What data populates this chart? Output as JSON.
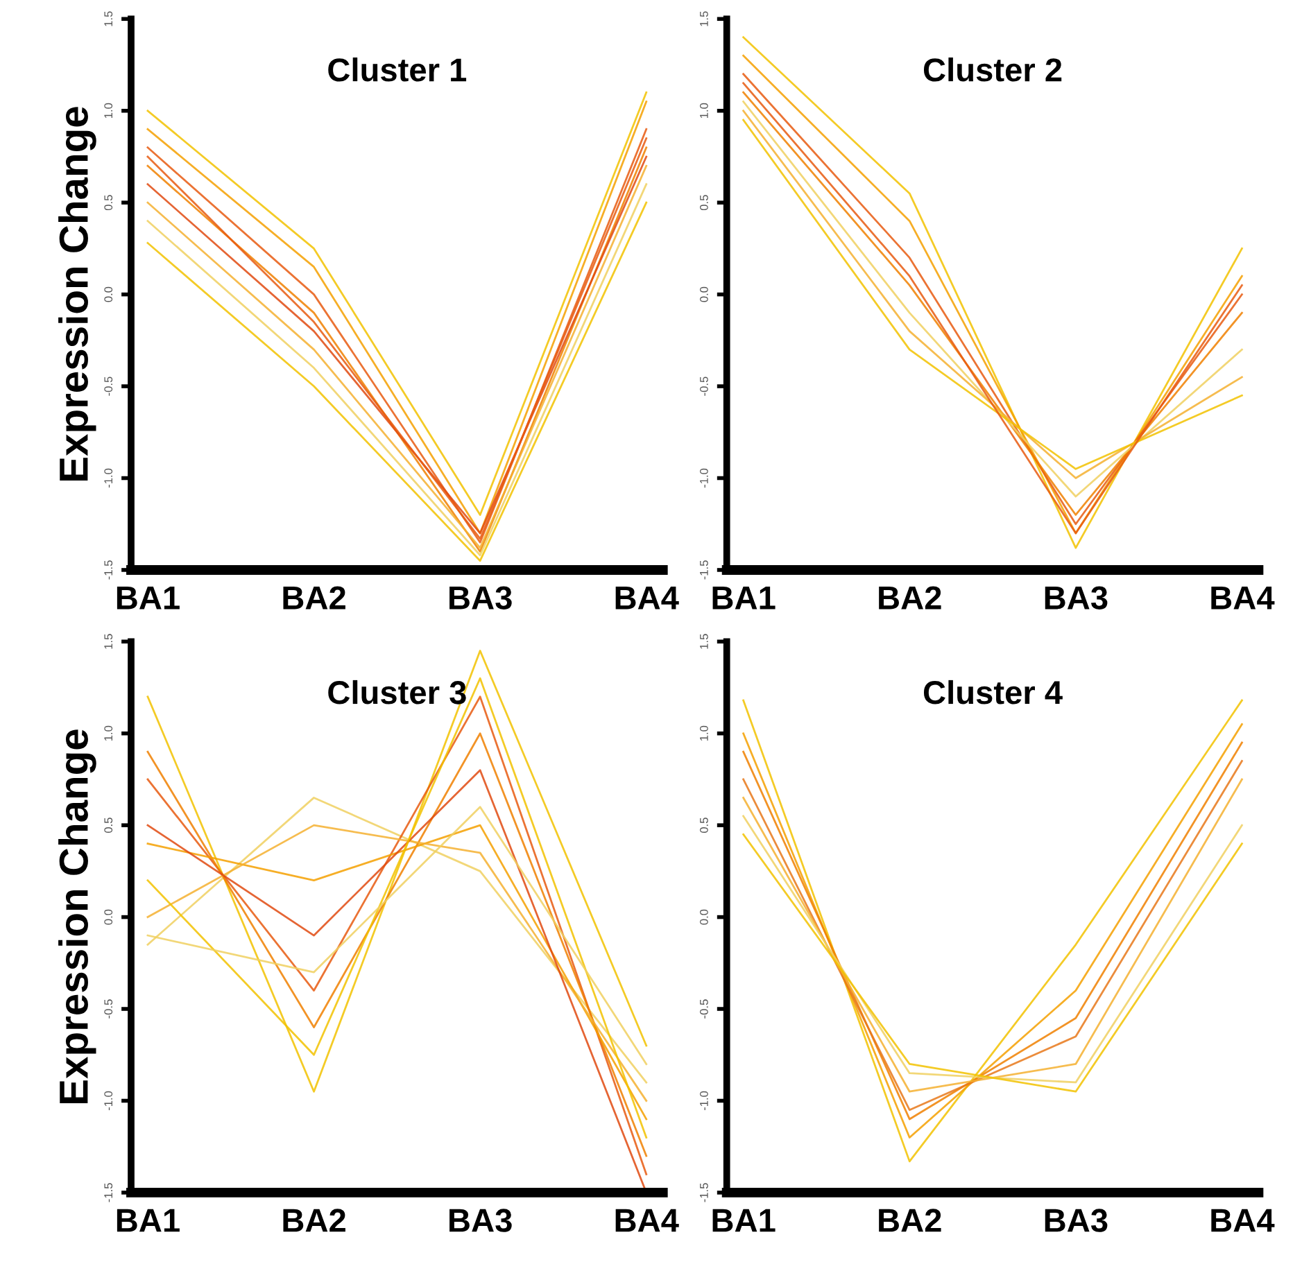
{
  "chart_data": [
    {
      "type": "line",
      "title": "Cluster 1",
      "ylabel": "Expression Change",
      "categories": [
        "BA1",
        "BA2",
        "BA3",
        "BA4"
      ],
      "ylim": [
        -1.5,
        1.5
      ],
      "yticks": [
        {
          "value": -1.5,
          "label": "-1.5"
        },
        {
          "value": -1.0,
          "label": "-1.0"
        },
        {
          "value": -0.5,
          "label": "-0.5"
        },
        {
          "value": 0.0,
          "label": "0.0"
        },
        {
          "value": 0.5,
          "label": "0.5"
        },
        {
          "value": 1.0,
          "label": "1.0"
        },
        {
          "value": 1.5,
          "label": "1.5"
        }
      ],
      "grid": false,
      "legend": false,
      "marker": "none",
      "line_style": "solid",
      "series": [
        {
          "color": "#f2c200",
          "values": [
            1.0,
            0.25,
            -1.2,
            1.1
          ]
        },
        {
          "color": "#f5a000",
          "values": [
            0.9,
            0.15,
            -1.3,
            1.05
          ]
        },
        {
          "color": "#e85a10",
          "values": [
            0.8,
            0.0,
            -1.35,
            0.9
          ]
        },
        {
          "color": "#f08000",
          "values": [
            0.7,
            -0.1,
            -1.4,
            0.8
          ]
        },
        {
          "color": "#e04a10",
          "values": [
            0.6,
            -0.2,
            -1.3,
            0.75
          ]
        },
        {
          "color": "#f5b030",
          "values": [
            0.5,
            -0.3,
            -1.38,
            0.7
          ]
        },
        {
          "color": "#f0d060",
          "values": [
            0.4,
            -0.4,
            -1.42,
            0.6
          ]
        },
        {
          "color": "#f2c200",
          "values": [
            0.28,
            -0.5,
            -1.45,
            0.5
          ]
        },
        {
          "color": "#e85a10",
          "values": [
            0.75,
            -0.15,
            -1.33,
            0.85
          ]
        }
      ]
    },
    {
      "type": "line",
      "title": "Cluster 2",
      "categories": [
        "BA1",
        "BA2",
        "BA3",
        "BA4"
      ],
      "ylim": [
        -1.5,
        1.5
      ],
      "yticks": [
        {
          "value": -1.5,
          "label": "-1.5"
        },
        {
          "value": -1.0,
          "label": "-1.0"
        },
        {
          "value": -0.5,
          "label": "-0.5"
        },
        {
          "value": 0.0,
          "label": "0.0"
        },
        {
          "value": 0.5,
          "label": "0.5"
        },
        {
          "value": 1.0,
          "label": "1.0"
        },
        {
          "value": 1.5,
          "label": "1.5"
        }
      ],
      "grid": false,
      "legend": false,
      "marker": "none",
      "line_style": "solid",
      "series": [
        {
          "color": "#f2c200",
          "values": [
            1.4,
            0.55,
            -1.38,
            0.25
          ]
        },
        {
          "color": "#f5a000",
          "values": [
            1.3,
            0.4,
            -1.3,
            0.1
          ]
        },
        {
          "color": "#e85a10",
          "values": [
            1.2,
            0.2,
            -1.25,
            0.0
          ]
        },
        {
          "color": "#f08000",
          "values": [
            1.1,
            0.05,
            -1.2,
            -0.1
          ]
        },
        {
          "color": "#f0d060",
          "values": [
            1.05,
            -0.1,
            -1.1,
            -0.3
          ]
        },
        {
          "color": "#f5b030",
          "values": [
            1.0,
            -0.2,
            -1.0,
            -0.45
          ]
        },
        {
          "color": "#f2c200",
          "values": [
            0.95,
            -0.3,
            -0.95,
            -0.55
          ]
        },
        {
          "color": "#e85a10",
          "values": [
            1.15,
            0.1,
            -1.3,
            0.05
          ]
        }
      ]
    },
    {
      "type": "line",
      "title": "Cluster 3",
      "ylabel": "Expression Change",
      "categories": [
        "BA1",
        "BA2",
        "BA3",
        "BA4"
      ],
      "ylim": [
        -1.5,
        1.5
      ],
      "yticks": [
        {
          "value": -1.5,
          "label": "-1.5"
        },
        {
          "value": -1.0,
          "label": "-1.0"
        },
        {
          "value": -0.5,
          "label": "-0.5"
        },
        {
          "value": 0.0,
          "label": "0.0"
        },
        {
          "value": 0.5,
          "label": "0.5"
        },
        {
          "value": 1.0,
          "label": "1.0"
        },
        {
          "value": 1.5,
          "label": "1.5"
        }
      ],
      "grid": false,
      "legend": false,
      "marker": "none",
      "line_style": "solid",
      "series": [
        {
          "color": "#f2c200",
          "values": [
            1.2,
            -0.95,
            1.45,
            -0.7
          ]
        },
        {
          "color": "#f0d060",
          "values": [
            -0.15,
            0.65,
            0.25,
            -0.9
          ]
        },
        {
          "color": "#e85a10",
          "values": [
            0.75,
            -0.4,
            1.2,
            -1.4
          ]
        },
        {
          "color": "#f08000",
          "values": [
            0.9,
            -0.6,
            1.0,
            -1.3
          ]
        },
        {
          "color": "#f5a000",
          "values": [
            0.4,
            0.2,
            0.5,
            -1.1
          ]
        },
        {
          "color": "#f5b030",
          "values": [
            0.0,
            0.5,
            0.35,
            -1.0
          ]
        },
        {
          "color": "#e04a10",
          "values": [
            0.5,
            -0.1,
            0.8,
            -1.5
          ]
        },
        {
          "color": "#f2c200",
          "values": [
            0.2,
            -0.75,
            1.3,
            -1.2
          ]
        },
        {
          "color": "#f0d060",
          "values": [
            -0.1,
            -0.3,
            0.6,
            -0.8
          ]
        }
      ]
    },
    {
      "type": "line",
      "title": "Cluster 4",
      "categories": [
        "BA1",
        "BA2",
        "BA3",
        "BA4"
      ],
      "ylim": [
        -1.5,
        1.5
      ],
      "yticks": [
        {
          "value": -1.5,
          "label": "-1.5"
        },
        {
          "value": -1.0,
          "label": "-1.0"
        },
        {
          "value": -0.5,
          "label": "-0.5"
        },
        {
          "value": 0.0,
          "label": "0.0"
        },
        {
          "value": 0.5,
          "label": "0.5"
        },
        {
          "value": 1.0,
          "label": "1.0"
        },
        {
          "value": 1.5,
          "label": "1.5"
        }
      ],
      "grid": false,
      "legend": false,
      "marker": "none",
      "line_style": "solid",
      "series": [
        {
          "color": "#f2c200",
          "values": [
            1.18,
            -1.33,
            -0.15,
            1.18
          ]
        },
        {
          "color": "#f5a000",
          "values": [
            1.0,
            -1.2,
            -0.4,
            1.05
          ]
        },
        {
          "color": "#f08000",
          "values": [
            0.9,
            -1.1,
            -0.55,
            0.95
          ]
        },
        {
          "color": "#e8781a",
          "values": [
            0.75,
            -1.05,
            -0.65,
            0.85
          ]
        },
        {
          "color": "#f5b030",
          "values": [
            0.65,
            -0.95,
            -0.8,
            0.75
          ]
        },
        {
          "color": "#f0d060",
          "values": [
            0.55,
            -0.85,
            -0.9,
            0.5
          ]
        },
        {
          "color": "#f2c200",
          "values": [
            0.45,
            -0.8,
            -0.95,
            0.4
          ]
        }
      ]
    }
  ]
}
